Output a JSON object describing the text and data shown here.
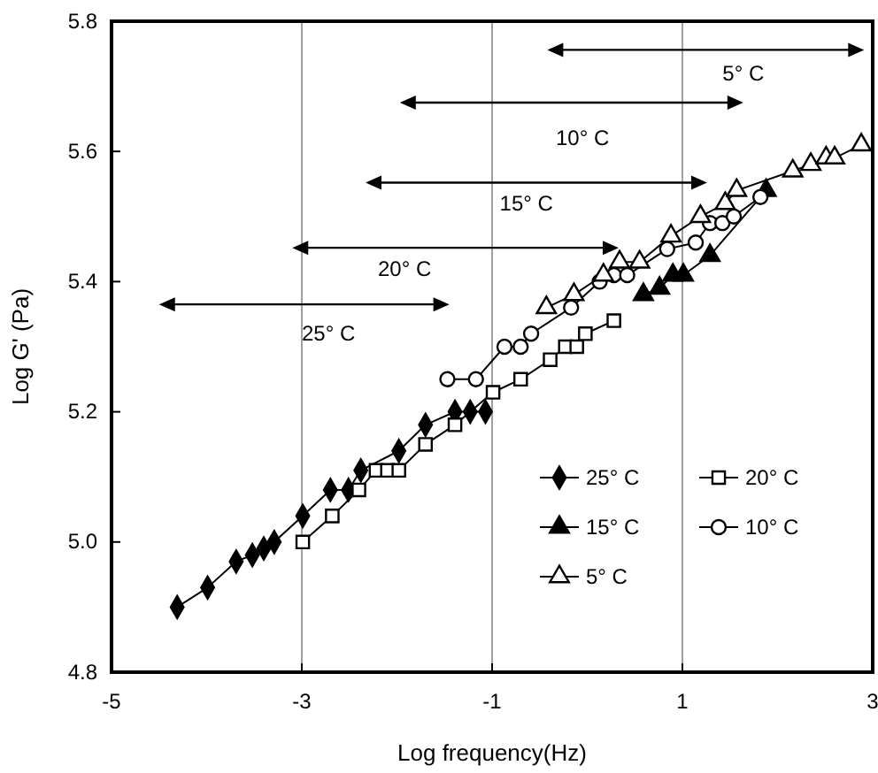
{
  "chart_data": {
    "type": "line",
    "xlabel": "Log frequency(Hz)",
    "ylabel": "Log G' (Pa)",
    "xlim": [
      -5,
      3
    ],
    "xticks": [
      -5,
      -3,
      -1,
      1,
      3
    ],
    "ylim": [
      4.8,
      5.8
    ],
    "yticks": [
      {
        "value": 4.8,
        "label": "4.8"
      },
      {
        "value": 5.0,
        "label": "5.0"
      },
      {
        "value": 5.2,
        "label": "5.2"
      },
      {
        "value": 5.4,
        "label": "5.4"
      },
      {
        "value": 5.6,
        "label": "5.6"
      },
      {
        "value": 5.8,
        "label": "5.8"
      }
    ],
    "legend": "bottom right",
    "line_style": "solid",
    "grid": false,
    "series": [
      {
        "name": "25° C",
        "color": "#000000",
        "marker": "diamond",
        "x": [
          -4.31,
          -3.99,
          -3.69,
          -3.52,
          -3.4,
          -3.29,
          -2.99,
          -2.7,
          -2.51,
          -2.38,
          -1.98,
          -1.7,
          -1.39,
          -1.23,
          -1.07
        ],
        "values": [
          4.9,
          4.93,
          4.97,
          4.98,
          4.99,
          5.0,
          5.04,
          5.08,
          5.08,
          5.11,
          5.14,
          5.18,
          5.2,
          5.2,
          5.2
        ]
      },
      {
        "name": "20° C",
        "color": "#000000",
        "marker": "square",
        "x": [
          -2.99,
          -2.68,
          -2.4,
          -2.22,
          -2.1,
          -1.98,
          -1.7,
          -1.39,
          -0.99,
          -0.7,
          -0.39,
          -0.23,
          -0.11,
          -0.02,
          0.28
        ],
        "values": [
          5.0,
          5.04,
          5.08,
          5.11,
          5.11,
          5.11,
          5.15,
          5.18,
          5.23,
          5.25,
          5.28,
          5.3,
          5.3,
          5.32,
          5.34
        ]
      },
      {
        "name": "15° C",
        "color": "#000000",
        "marker": "triangle",
        "x": [
          0.59,
          0.76,
          0.9,
          1.01,
          1.29,
          1.88
        ],
        "values": [
          5.38,
          5.39,
          5.41,
          5.41,
          5.44,
          5.54
        ]
      },
      {
        "name": "10° C",
        "color": "#000000",
        "marker": "circle",
        "x": [
          -1.47,
          -1.17,
          -0.87,
          -0.7,
          -0.59,
          -0.17,
          0.13,
          0.28,
          0.42,
          0.84,
          1.14,
          1.29,
          1.42,
          1.54,
          1.82
        ],
        "values": [
          5.25,
          5.25,
          5.3,
          5.3,
          5.32,
          5.36,
          5.4,
          5.41,
          5.41,
          5.45,
          5.46,
          5.49,
          5.49,
          5.5,
          5.53
        ]
      },
      {
        "name": "5° C",
        "color": "#000000",
        "marker": "triangle",
        "x": [
          -0.43,
          -0.14,
          0.17,
          0.34,
          0.55,
          0.88,
          1.19,
          1.45,
          1.57,
          2.16,
          2.35,
          2.51,
          2.6,
          2.88
        ],
        "values": [
          5.36,
          5.38,
          5.41,
          5.43,
          5.43,
          5.47,
          5.5,
          5.52,
          5.54,
          5.57,
          5.58,
          5.59,
          5.59,
          5.61
        ]
      }
    ],
    "ref_lines": [
      {
        "axis": "x",
        "value": -3,
        "color": "#888888"
      },
      {
        "axis": "x",
        "value": -1,
        "color": "#888888"
      },
      {
        "axis": "x",
        "value": 1,
        "color": "#888888"
      }
    ],
    "annotations": [
      "5° C",
      "10° C",
      "15° C",
      "20° C",
      "25° C"
    ]
  }
}
